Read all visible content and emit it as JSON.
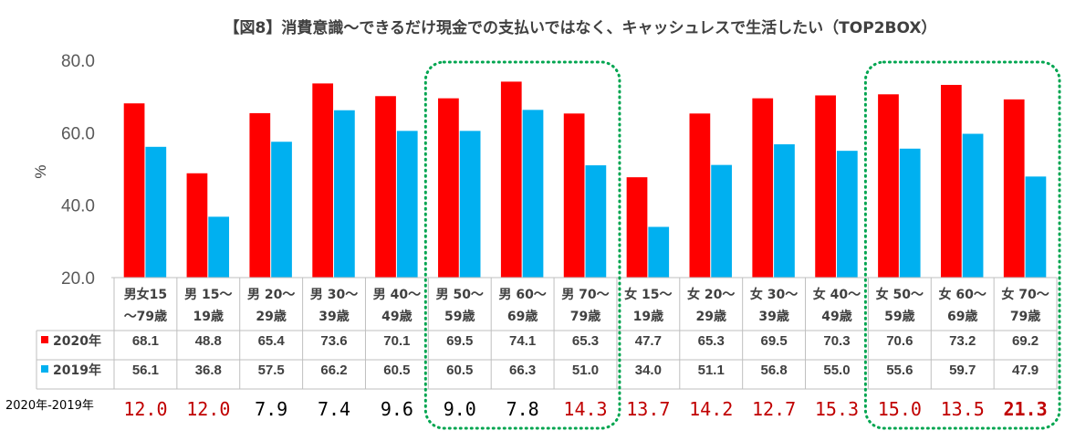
{
  "chart_data": {
    "type": "bar",
    "title": "【図8】消費意識〜できるだけ現金での支払いではなく、キャッシュレスで生活したい（TOP2BOX）",
    "ylabel": "%",
    "ylim": [
      20,
      80
    ],
    "yticks": [
      "20.0",
      "40.0",
      "60.0",
      "80.0"
    ],
    "legend_placement": "table-left",
    "grid": false,
    "categories": [
      [
        "男女15",
        "〜79歳"
      ],
      [
        "男 15〜",
        "19歳"
      ],
      [
        "男 20〜",
        "29歳"
      ],
      [
        "男 30〜",
        "39歳"
      ],
      [
        "男 40〜",
        "49歳"
      ],
      [
        "男 50〜",
        "59歳"
      ],
      [
        "男 60〜",
        "69歳"
      ],
      [
        "男 70〜",
        "79歳"
      ],
      [
        "女 15〜",
        "19歳"
      ],
      [
        "女 20〜",
        "29歳"
      ],
      [
        "女 30〜",
        "39歳"
      ],
      [
        "女 40〜",
        "49歳"
      ],
      [
        "女 50〜",
        "59歳"
      ],
      [
        "女 60〜",
        "69歳"
      ],
      [
        "女 70〜",
        "79歳"
      ]
    ],
    "series": [
      {
        "name": "2020年",
        "color": "#ff0000",
        "values": [
          68.1,
          48.8,
          65.4,
          73.6,
          70.1,
          69.5,
          74.1,
          65.3,
          47.7,
          65.3,
          69.5,
          70.3,
          70.6,
          73.2,
          69.2
        ],
        "labels": [
          "68.1",
          "48.8",
          "65.4",
          "73.6",
          "70.1",
          "69.5",
          "74.1",
          "65.3",
          "47.7",
          "65.3",
          "69.5",
          "70.3",
          "70.6",
          "73.2",
          "69.2"
        ]
      },
      {
        "name": "2019年",
        "color": "#00b0f0",
        "values": [
          56.1,
          36.8,
          57.5,
          66.2,
          60.5,
          60.5,
          66.3,
          51.0,
          34.0,
          51.1,
          56.8,
          55.0,
          55.6,
          59.7,
          47.9
        ],
        "labels": [
          "56.1",
          "36.8",
          "57.5",
          "66.2",
          "60.5",
          "60.5",
          "66.3",
          "51.0",
          "34.0",
          "51.1",
          "56.8",
          "55.0",
          "55.6",
          "59.7",
          "47.9"
        ]
      }
    ],
    "diff_row": {
      "label": "2020年-2019年",
      "labels": [
        "12.0",
        "12.0",
        "7.9",
        "7.4",
        "9.6",
        "9.0",
        "7.8",
        "14.3",
        "13.7",
        "14.2",
        "12.7",
        "15.3",
        "15.0",
        "13.5",
        "21.3"
      ],
      "highlight": [
        true,
        true,
        false,
        false,
        false,
        false,
        false,
        true,
        true,
        true,
        true,
        true,
        true,
        true,
        true
      ],
      "strong": [
        false,
        false,
        false,
        false,
        false,
        false,
        false,
        false,
        false,
        false,
        false,
        false,
        false,
        false,
        true
      ],
      "highlight_color": "#c00000",
      "normal_color": "#000000"
    },
    "highlight_groups": [
      {
        "from": 5,
        "to": 7
      },
      {
        "from": 12,
        "to": 14
      }
    ],
    "highlight_color": "#00a550"
  }
}
